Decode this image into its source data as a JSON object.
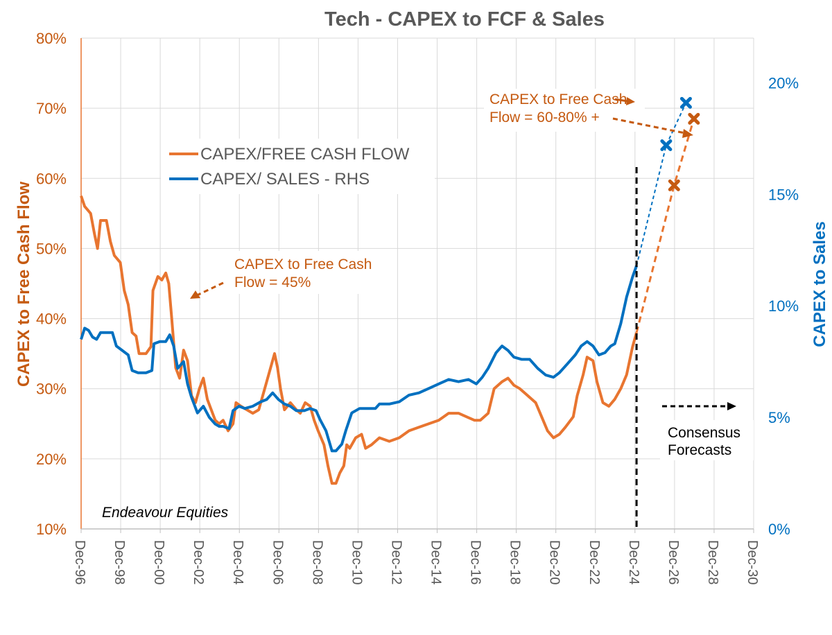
{
  "chart_data": {
    "type": "line",
    "title": "Tech - CAPEX to FCF & Sales",
    "ylabel_left": "CAPEX  to Free Cash Flow",
    "ylabel_right": "CAPEX to Sales",
    "ylim_left": [
      10,
      80
    ],
    "ylim_right": [
      0,
      22
    ],
    "left_ticks": [
      "10%",
      "20%",
      "30%",
      "40%",
      "50%",
      "60%",
      "70%",
      "80%"
    ],
    "right_ticks": [
      "0%",
      "5%",
      "10%",
      "15%",
      "20%"
    ],
    "x_ticks": [
      "Dec-96",
      "Dec-98",
      "Dec-00",
      "Dec-02",
      "Dec-04",
      "Dec-06",
      "Dec-08",
      "Dec-10",
      "Dec-12",
      "Dec-14",
      "Dec-16",
      "Dec-18",
      "Dec-20",
      "Dec-22",
      "Dec-24",
      "Dec-26",
      "Dec-28",
      "Dec-30"
    ],
    "xlim": [
      1996.92,
      2030.92
    ],
    "grid": true,
    "legend_position": "upper-left-center",
    "colors": {
      "fcf": "#e87530",
      "sales": "#0070c0",
      "fcf_text": "#c55a11",
      "sales_text": "#0070c0",
      "divider": "#000000"
    },
    "series": [
      {
        "name": "CAPEX/FREE CASH FLOW",
        "axis": "left",
        "points": [
          [
            1996.92,
            57.5
          ],
          [
            1997.1,
            56
          ],
          [
            1997.4,
            55
          ],
          [
            1997.6,
            52
          ],
          [
            1997.75,
            50
          ],
          [
            1997.9,
            54
          ],
          [
            1998.2,
            54
          ],
          [
            1998.4,
            51
          ],
          [
            1998.6,
            49
          ],
          [
            1998.9,
            48
          ],
          [
            1999.1,
            44
          ],
          [
            1999.3,
            42
          ],
          [
            1999.5,
            38
          ],
          [
            1999.7,
            37.5
          ],
          [
            1999.85,
            35
          ],
          [
            2000.2,
            35
          ],
          [
            2000.45,
            36
          ],
          [
            2000.55,
            44
          ],
          [
            2000.8,
            46
          ],
          [
            2001.0,
            45.5
          ],
          [
            2001.2,
            46.5
          ],
          [
            2001.35,
            45
          ],
          [
            2001.5,
            40
          ],
          [
            2001.7,
            33
          ],
          [
            2001.9,
            31.5
          ],
          [
            2002.1,
            35.5
          ],
          [
            2002.3,
            34
          ],
          [
            2002.5,
            29
          ],
          [
            2002.7,
            28
          ],
          [
            2002.9,
            30
          ],
          [
            2003.1,
            31.5
          ],
          [
            2003.3,
            28.5
          ],
          [
            2003.5,
            27
          ],
          [
            2003.7,
            25.5
          ],
          [
            2003.9,
            25
          ],
          [
            2004.1,
            25.5
          ],
          [
            2004.35,
            24
          ],
          [
            2004.6,
            25
          ],
          [
            2004.75,
            28
          ],
          [
            2005.0,
            27.5
          ],
          [
            2005.3,
            27
          ],
          [
            2005.6,
            26.5
          ],
          [
            2005.9,
            27
          ],
          [
            2006.2,
            30
          ],
          [
            2006.5,
            33
          ],
          [
            2006.7,
            35
          ],
          [
            2006.85,
            33
          ],
          [
            2007.0,
            30
          ],
          [
            2007.2,
            27
          ],
          [
            2007.5,
            28
          ],
          [
            2007.8,
            27
          ],
          [
            2008.0,
            26.5
          ],
          [
            2008.25,
            28
          ],
          [
            2008.5,
            27.5
          ],
          [
            2008.7,
            25.5
          ],
          [
            2008.9,
            24
          ],
          [
            2009.2,
            22
          ],
          [
            2009.4,
            19
          ],
          [
            2009.6,
            16.5
          ],
          [
            2009.8,
            16.5
          ],
          [
            2010.0,
            18
          ],
          [
            2010.2,
            19
          ],
          [
            2010.35,
            22
          ],
          [
            2010.5,
            21.5
          ],
          [
            2010.8,
            23
          ],
          [
            2011.1,
            23.5
          ],
          [
            2011.3,
            21.5
          ],
          [
            2011.6,
            22
          ],
          [
            2012.0,
            23
          ],
          [
            2012.5,
            22.5
          ],
          [
            2013.0,
            23
          ],
          [
            2013.5,
            24
          ],
          [
            2014.0,
            24.5
          ],
          [
            2014.5,
            25
          ],
          [
            2015.0,
            25.5
          ],
          [
            2015.5,
            26.5
          ],
          [
            2016.0,
            26.5
          ],
          [
            2016.4,
            26
          ],
          [
            2016.8,
            25.5
          ],
          [
            2017.1,
            25.5
          ],
          [
            2017.5,
            26.5
          ],
          [
            2017.8,
            30
          ],
          [
            2018.2,
            31
          ],
          [
            2018.5,
            31.5
          ],
          [
            2018.8,
            30.5
          ],
          [
            2019.1,
            30
          ],
          [
            2019.5,
            29
          ],
          [
            2019.9,
            28
          ],
          [
            2020.2,
            26
          ],
          [
            2020.5,
            24
          ],
          [
            2020.8,
            23
          ],
          [
            2021.1,
            23.5
          ],
          [
            2021.4,
            24.5
          ],
          [
            2021.8,
            26
          ],
          [
            2022.0,
            29
          ],
          [
            2022.3,
            32
          ],
          [
            2022.5,
            34.5
          ],
          [
            2022.8,
            34
          ],
          [
            2023.0,
            31
          ],
          [
            2023.3,
            28
          ],
          [
            2023.6,
            27.5
          ],
          [
            2023.9,
            28.5
          ],
          [
            2024.2,
            30
          ],
          [
            2024.5,
            32
          ],
          [
            2024.8,
            36
          ],
          [
            2025.0,
            38
          ]
        ]
      },
      {
        "name": "CAPEX/ SALES - RHS",
        "axis": "right",
        "points": [
          [
            1996.92,
            8.5
          ],
          [
            1997.1,
            9.0
          ],
          [
            1997.3,
            8.9
          ],
          [
            1997.5,
            8.6
          ],
          [
            1997.7,
            8.5
          ],
          [
            1997.9,
            8.8
          ],
          [
            1998.2,
            8.8
          ],
          [
            1998.5,
            8.8
          ],
          [
            1998.7,
            8.2
          ],
          [
            1999.0,
            8.0
          ],
          [
            1999.3,
            7.8
          ],
          [
            1999.5,
            7.1
          ],
          [
            1999.8,
            7.0
          ],
          [
            2000.2,
            7.0
          ],
          [
            2000.5,
            7.1
          ],
          [
            2000.6,
            8.3
          ],
          [
            2000.9,
            8.4
          ],
          [
            2001.2,
            8.4
          ],
          [
            2001.4,
            8.7
          ],
          [
            2001.6,
            8.2
          ],
          [
            2001.8,
            7.2
          ],
          [
            2002.1,
            7.5
          ],
          [
            2002.3,
            6.5
          ],
          [
            2002.5,
            5.9
          ],
          [
            2002.8,
            5.2
          ],
          [
            2003.1,
            5.5
          ],
          [
            2003.4,
            5.0
          ],
          [
            2003.7,
            4.7
          ],
          [
            2003.9,
            4.6
          ],
          [
            2004.1,
            4.6
          ],
          [
            2004.4,
            4.5
          ],
          [
            2004.6,
            5.3
          ],
          [
            2004.9,
            5.5
          ],
          [
            2005.2,
            5.4
          ],
          [
            2005.6,
            5.5
          ],
          [
            2006.0,
            5.7
          ],
          [
            2006.3,
            5.8
          ],
          [
            2006.6,
            6.1
          ],
          [
            2006.9,
            5.8
          ],
          [
            2007.2,
            5.6
          ],
          [
            2007.5,
            5.5
          ],
          [
            2007.8,
            5.3
          ],
          [
            2008.2,
            5.3
          ],
          [
            2008.5,
            5.4
          ],
          [
            2008.8,
            5.3
          ],
          [
            2009.0,
            4.9
          ],
          [
            2009.3,
            4.4
          ],
          [
            2009.6,
            3.5
          ],
          [
            2009.8,
            3.5
          ],
          [
            2010.1,
            3.8
          ],
          [
            2010.3,
            4.4
          ],
          [
            2010.6,
            5.2
          ],
          [
            2011.0,
            5.4
          ],
          [
            2011.4,
            5.4
          ],
          [
            2011.8,
            5.4
          ],
          [
            2012.0,
            5.6
          ],
          [
            2012.5,
            5.6
          ],
          [
            2013.0,
            5.7
          ],
          [
            2013.5,
            6.0
          ],
          [
            2014.0,
            6.1
          ],
          [
            2014.5,
            6.3
          ],
          [
            2015.0,
            6.5
          ],
          [
            2015.5,
            6.7
          ],
          [
            2016.0,
            6.6
          ],
          [
            2016.5,
            6.7
          ],
          [
            2016.9,
            6.5
          ],
          [
            2017.2,
            6.8
          ],
          [
            2017.5,
            7.2
          ],
          [
            2017.9,
            7.9
          ],
          [
            2018.2,
            8.2
          ],
          [
            2018.5,
            8.0
          ],
          [
            2018.8,
            7.7
          ],
          [
            2019.2,
            7.6
          ],
          [
            2019.6,
            7.6
          ],
          [
            2020.0,
            7.2
          ],
          [
            2020.4,
            6.9
          ],
          [
            2020.8,
            6.8
          ],
          [
            2021.1,
            7.0
          ],
          [
            2021.5,
            7.4
          ],
          [
            2021.9,
            7.8
          ],
          [
            2022.2,
            8.2
          ],
          [
            2022.5,
            8.4
          ],
          [
            2022.8,
            8.2
          ],
          [
            2023.1,
            7.8
          ],
          [
            2023.4,
            7.9
          ],
          [
            2023.7,
            8.2
          ],
          [
            2023.9,
            8.3
          ],
          [
            2024.2,
            9.2
          ],
          [
            2024.5,
            10.4
          ],
          [
            2024.8,
            11.3
          ],
          [
            2025.0,
            11.8
          ]
        ]
      }
    ],
    "forecasts": [
      {
        "series": "CAPEX/FREE CASH FLOW",
        "axis": "left",
        "from": [
          2025.0,
          38
        ],
        "points": [
          [
            2026.9,
            59
          ],
          [
            2027.9,
            68.5
          ]
        ]
      },
      {
        "series": "CAPEX/ SALES - RHS",
        "axis": "right",
        "from": [
          2025.0,
          11.8
        ],
        "points": [
          [
            2026.5,
            17.2
          ],
          [
            2027.5,
            19.1
          ]
        ]
      }
    ],
    "divider_x": 2025.0,
    "annotations": {
      "fcf45_line1": "CAPEX to Free Cash",
      "fcf45_line2": "Flow = 45%",
      "fcf6080_line1": "CAPEX to Free Cash",
      "fcf6080_line2": "Flow = 60-80% +",
      "consensus_line1": "Consensus",
      "consensus_line2": "Forecasts",
      "source": "Endeavour Equities"
    }
  }
}
